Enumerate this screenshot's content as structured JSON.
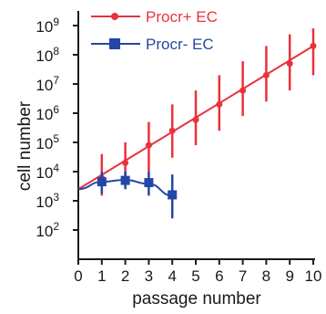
{
  "chart_data": {
    "type": "line",
    "title": "",
    "xlabel": "passage number",
    "ylabel": "cell number",
    "x_ticks": [
      0,
      1,
      2,
      3,
      4,
      5,
      6,
      7,
      8,
      9,
      10
    ],
    "y_ticks": [
      {
        "value": 100,
        "base": "10",
        "exp": "2"
      },
      {
        "value": 1000,
        "base": "10",
        "exp": "3"
      },
      {
        "value": 10000,
        "base": "10",
        "exp": "4"
      },
      {
        "value": 100000,
        "base": "10",
        "exp": "5"
      },
      {
        "value": 1000000,
        "base": "10",
        "exp": "6"
      },
      {
        "value": 10000000,
        "base": "10",
        "exp": "7"
      },
      {
        "value": 100000000,
        "base": "10",
        "exp": "8"
      },
      {
        "value": 1000000000,
        "base": "10",
        "exp": "9"
      }
    ],
    "xlim": [
      0,
      10
    ],
    "ylim": [
      10,
      1000000000
    ],
    "y_scale": "log",
    "grid": false,
    "legend_position": "top-right",
    "series": [
      {
        "name": "Procr+ EC",
        "color": "#e8323c",
        "marker": "circle",
        "x": [
          1,
          2,
          3,
          4,
          5,
          6,
          7,
          8,
          9,
          10
        ],
        "y": [
          6000,
          20000,
          80000,
          250000,
          600000,
          2000000,
          6000000,
          20000000,
          50000000,
          200000000
        ],
        "error_low": [
          1500,
          4000,
          10000,
          30000,
          80000,
          250000,
          800000,
          2500000,
          6000000,
          20000000
        ],
        "error_high": [
          40000,
          100000,
          500000,
          2000000,
          6000000,
          20000000,
          60000000,
          200000000,
          500000000,
          800000000
        ],
        "fit_line": {
          "x": [
            0,
            10
          ],
          "y": [
            2500,
            200000000
          ]
        }
      },
      {
        "name": "Procr- EC",
        "color": "#2546a6",
        "marker": "square",
        "x": [
          1,
          2,
          3,
          4
        ],
        "y": [
          4500,
          5000,
          4200,
          1600
        ],
        "error_low": [
          1800,
          2500,
          1500,
          250
        ],
        "error_high": [
          10000,
          10000,
          10000,
          8000
        ],
        "fit_curve": {
          "x": [
            0,
            1,
            2,
            3,
            4
          ],
          "y": [
            2500,
            4500,
            5200,
            3800,
            1500
          ]
        }
      }
    ]
  }
}
